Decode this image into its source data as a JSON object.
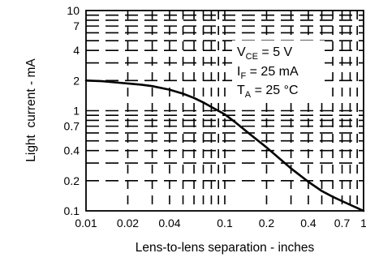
{
  "chart_data": {
    "type": "line",
    "xlabel": "Lens-to-lens separation - inches",
    "ylabel": "Light  current - mA",
    "x_scale": "log",
    "y_scale": "log",
    "xlim": [
      0.01,
      1
    ],
    "ylim": [
      0.1,
      10
    ],
    "grid": true,
    "x_ticks": [
      {
        "value": 0.01,
        "label": "0.01"
      },
      {
        "value": 0.02,
        "label": "0.02"
      },
      {
        "value": 0.04,
        "label": "0.04"
      },
      {
        "value": 0.1,
        "label": "0.1"
      },
      {
        "value": 0.2,
        "label": "0.2"
      },
      {
        "value": 0.4,
        "label": "0.4"
      },
      {
        "value": 0.7,
        "label": "0.7"
      },
      {
        "value": 1,
        "label": "1"
      }
    ],
    "y_ticks": [
      {
        "value": 0.1,
        "label": "0.1"
      },
      {
        "value": 0.2,
        "label": "0.2"
      },
      {
        "value": 0.4,
        "label": "0.4"
      },
      {
        "value": 0.7,
        "label": "0.7"
      },
      {
        "value": 1,
        "label": "1"
      },
      {
        "value": 2,
        "label": "2"
      },
      {
        "value": 4,
        "label": "4"
      },
      {
        "value": 7,
        "label": "7"
      },
      {
        "value": 10,
        "label": "10"
      }
    ],
    "annotations": [
      {
        "main": "V",
        "sub": "CE",
        "rest": " = 5 V"
      },
      {
        "main": "I",
        "sub": "F",
        "rest": " = 25 mA"
      },
      {
        "main": "T",
        "sub": "A",
        "rest": " = 25 °C"
      }
    ],
    "series": [
      {
        "x": [
          0.01,
          0.013,
          0.016,
          0.02,
          0.025,
          0.03,
          0.04,
          0.05,
          0.06,
          0.07,
          0.08,
          0.1,
          0.12,
          0.15,
          0.2,
          0.25,
          0.3,
          0.4,
          0.5,
          0.6,
          0.7,
          0.8,
          1.0
        ],
        "y": [
          2.0,
          1.97,
          1.92,
          1.87,
          1.82,
          1.76,
          1.62,
          1.48,
          1.34,
          1.21,
          1.09,
          0.92,
          0.76,
          0.59,
          0.43,
          0.33,
          0.265,
          0.195,
          0.158,
          0.138,
          0.125,
          0.115,
          0.1
        ]
      }
    ]
  }
}
